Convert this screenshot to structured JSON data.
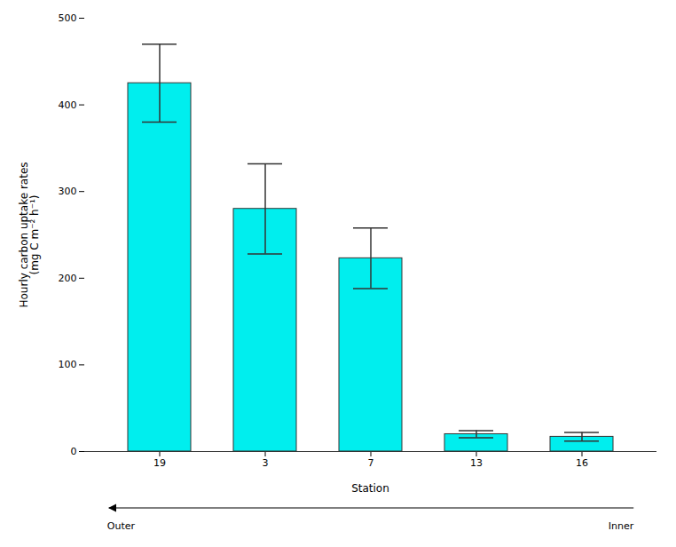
{
  "chart_data": {
    "type": "bar",
    "categories": [
      "19",
      "3",
      "7",
      "13",
      "16"
    ],
    "values": [
      425,
      280,
      223,
      20,
      17
    ],
    "errors": [
      45,
      52,
      35,
      4,
      5
    ],
    "color": "#00EEEE",
    "ylim": [
      0,
      500
    ],
    "yticks": [
      0,
      100,
      200,
      300,
      400,
      500
    ],
    "ylabel": "Hourly carbon uptake rates\n(mg C m⁻² h⁻¹)",
    "xlabel": "Station",
    "annotations": [
      "Outer",
      "Inner"
    ],
    "grid": false
  }
}
